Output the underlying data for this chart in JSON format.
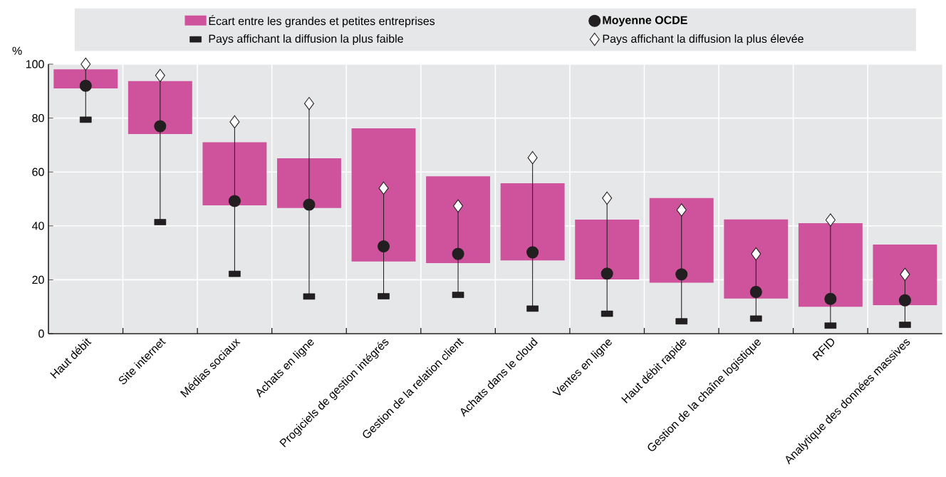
{
  "chart_data": {
    "type": "bar",
    "ylabel": "%",
    "legend": "top",
    "grid": true,
    "ylim": [
      0,
      100
    ],
    "yticks": [
      0,
      20,
      40,
      60,
      80,
      100
    ],
    "categories": [
      "Haut débit",
      "Site internet",
      "Médias sociaux",
      "Achats en ligne",
      "Progiciels de gestion intégrés",
      "Gestion de la relation client",
      "Achats dans le cloud",
      "Ventes en ligne",
      "Haut débit rapide",
      "Gestion de la chaîne logistique",
      "RFID",
      "Analytique des données massives"
    ],
    "series": [
      {
        "name": "Écart entre les grandes et petites entreprises",
        "type": "bar",
        "color": "#cf539c",
        "base": [
          91,
          74.1,
          47.6,
          46.6,
          26.8,
          26.2,
          27.2,
          20.1,
          18.9,
          13,
          10,
          10.6
        ],
        "values": [
          7.1,
          19.6,
          23.4,
          18.5,
          49.4,
          32.2,
          28.6,
          22.2,
          31.4,
          29.4,
          31,
          22.5
        ]
      },
      {
        "name": "**Moyenne OCDE**",
        "type": "scatter",
        "marker": "circle",
        "color": "#231f20",
        "values": [
          92,
          77,
          49.2,
          47.9,
          32.4,
          29.6,
          30.2,
          22.3,
          22,
          15.5,
          12.9,
          12.4
        ]
      },
      {
        "name": "Pays affichant la diffusion la plus faible",
        "type": "scatter",
        "marker": "square",
        "color": "#231f20",
        "values": [
          79.4,
          41.4,
          22.2,
          13.8,
          13.9,
          14.4,
          9.3,
          7.4,
          4.6,
          5.6,
          3,
          3.3
        ]
      },
      {
        "name": "Pays affichant la diffusion la plus élevée",
        "type": "scatter",
        "marker": "diamond",
        "color": "#ffffff",
        "values": [
          100,
          95.8,
          78.6,
          85.4,
          54,
          47.4,
          65.3,
          50.3,
          45.9,
          29.6,
          42.2,
          22
        ]
      }
    ]
  }
}
